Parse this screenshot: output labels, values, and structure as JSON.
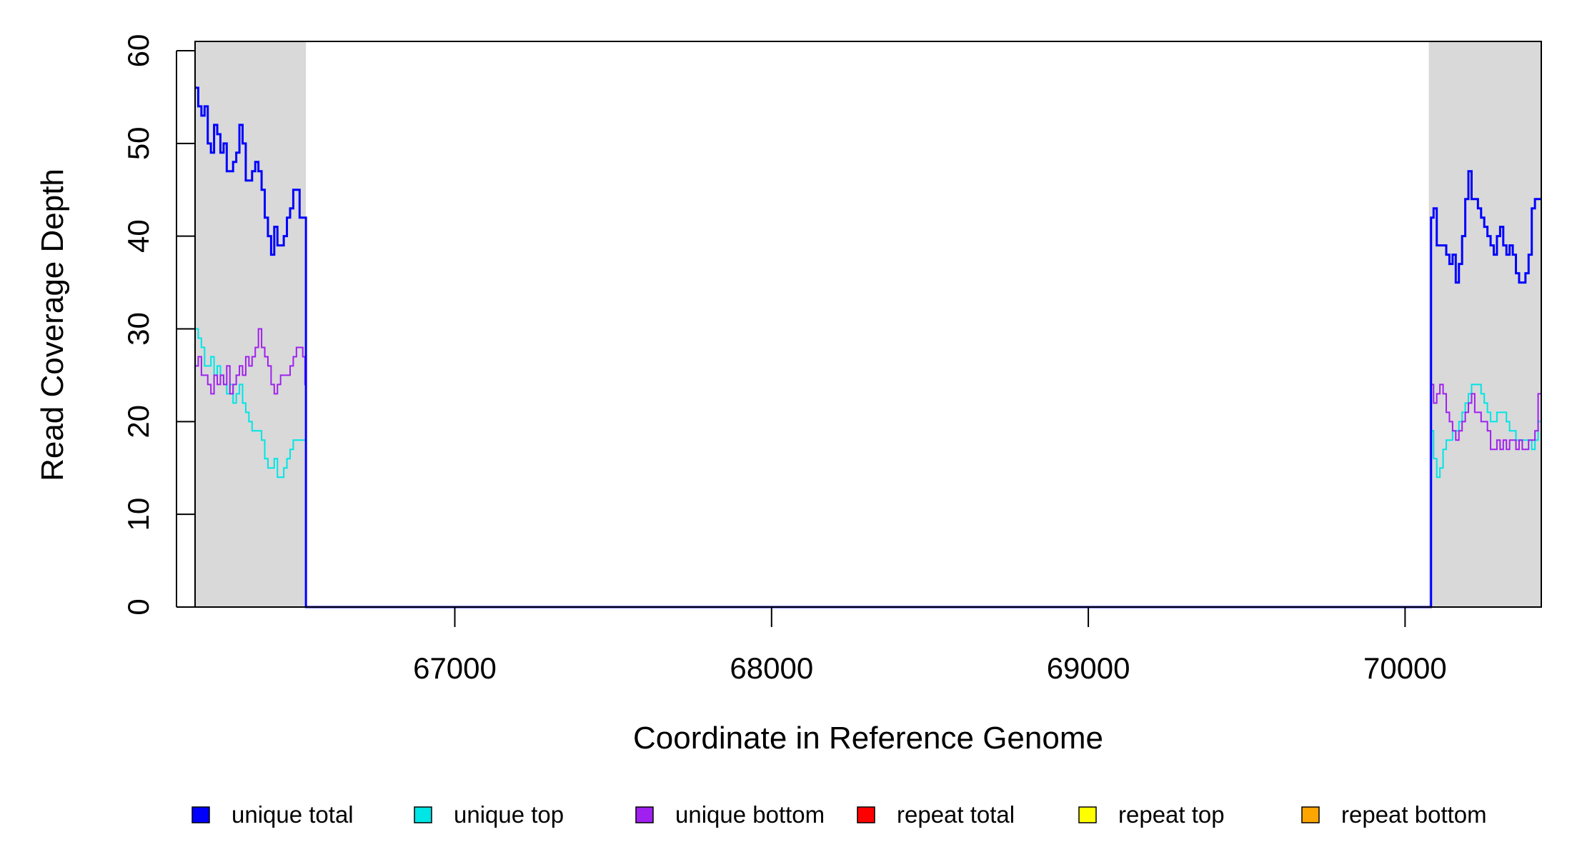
{
  "chart_data": {
    "type": "line",
    "title": "",
    "xlabel": "Coordinate in Reference Genome",
    "ylabel": "Read Coverage Depth",
    "xlim": [
      66180,
      70430
    ],
    "ylim": [
      0,
      61
    ],
    "x_ticks": [
      67000,
      68000,
      69000,
      70000
    ],
    "y_ticks": [
      0,
      10,
      20,
      30,
      40,
      50,
      60
    ],
    "grid": false,
    "legend_position": "bottom",
    "shaded_regions": [
      {
        "x0": 66180,
        "x1": 66530,
        "color": "#d9d9d9"
      },
      {
        "x0": 70075,
        "x1": 70430,
        "color": "#d9d9d9"
      }
    ],
    "series": [
      {
        "name": "unique total",
        "color": "#0000ff",
        "step": true,
        "x": [
          66180,
          66190,
          66200,
          66210,
          66220,
          66230,
          66240,
          66250,
          66260,
          66270,
          66280,
          66290,
          66300,
          66310,
          66320,
          66330,
          66340,
          66350,
          66360,
          66370,
          66380,
          66390,
          66400,
          66410,
          66420,
          66430,
          66440,
          66450,
          66460,
          66470,
          66480,
          66490,
          66500,
          66510,
          66520,
          66527,
          66530,
          70075,
          70082,
          70090,
          70100,
          70110,
          70120,
          70130,
          70140,
          70150,
          70160,
          70170,
          70180,
          70190,
          70200,
          70210,
          70220,
          70230,
          70240,
          70250,
          70260,
          70270,
          70280,
          70290,
          70300,
          70310,
          70320,
          70330,
          70340,
          70350,
          70360,
          70370,
          70380,
          70390,
          70400,
          70410,
          70420,
          70430
        ],
        "y": [
          56,
          54,
          53,
          54,
          50,
          49,
          52,
          51,
          49,
          50,
          47,
          47,
          48,
          49,
          52,
          50,
          46,
          46,
          47,
          48,
          47,
          45,
          42,
          40,
          38,
          41,
          39,
          39,
          40,
          42,
          43,
          45,
          45,
          42,
          42,
          42,
          0,
          0,
          42,
          43,
          39,
          39,
          39,
          38,
          37,
          38,
          35,
          37,
          40,
          44,
          47,
          44,
          44,
          43,
          42,
          41,
          40,
          39,
          38,
          40,
          41,
          39,
          38,
          39,
          38,
          36,
          35,
          35,
          36,
          38,
          43,
          44,
          44,
          44
        ],
        "note_width": 3
      },
      {
        "name": "unique top",
        "color": "#00e5e5",
        "step": true,
        "x": [
          66180,
          66190,
          66200,
          66210,
          66220,
          66230,
          66240,
          66250,
          66260,
          66270,
          66280,
          66290,
          66300,
          66310,
          66320,
          66330,
          66340,
          66350,
          66360,
          66370,
          66380,
          66390,
          66400,
          66410,
          66420,
          66430,
          66440,
          66450,
          66460,
          66470,
          66480,
          66490,
          66500,
          66510,
          66520,
          66527,
          66530,
          70075,
          70082,
          70090,
          70100,
          70110,
          70120,
          70130,
          70140,
          70150,
          70160,
          70170,
          70180,
          70190,
          70200,
          70210,
          70220,
          70230,
          70240,
          70250,
          70260,
          70270,
          70280,
          70290,
          70300,
          70310,
          70320,
          70330,
          70340,
          70350,
          70360,
          70370,
          70380,
          70390,
          70400,
          70410,
          70420,
          70430
        ],
        "y": [
          30,
          29,
          28,
          26,
          26,
          27,
          25,
          26,
          25,
          24,
          23,
          24,
          22,
          23,
          24,
          22,
          21,
          20,
          19,
          19,
          19,
          18,
          16,
          15,
          15,
          16,
          14,
          14,
          15,
          16,
          17,
          18,
          18,
          18,
          18,
          18,
          0,
          0,
          19,
          16,
          14,
          15,
          17,
          18,
          18,
          19,
          19,
          20,
          21,
          22,
          23,
          24,
          24,
          24,
          23,
          22,
          21,
          20,
          20,
          21,
          21,
          21,
          20,
          19,
          19,
          18,
          18,
          18,
          18,
          18,
          17,
          18,
          20,
          21
        ],
        "note_width": 2
      },
      {
        "name": "unique bottom",
        "color": "#a020f0",
        "step": true,
        "x": [
          66180,
          66190,
          66200,
          66210,
          66220,
          66230,
          66240,
          66250,
          66260,
          66270,
          66280,
          66290,
          66300,
          66310,
          66320,
          66330,
          66340,
          66350,
          66360,
          66370,
          66380,
          66390,
          66400,
          66410,
          66420,
          66430,
          66440,
          66450,
          66460,
          66470,
          66480,
          66490,
          66500,
          66510,
          66520,
          66527,
          66530,
          70075,
          70082,
          70090,
          70100,
          70110,
          70120,
          70130,
          70140,
          70150,
          70160,
          70170,
          70180,
          70190,
          70200,
          70210,
          70220,
          70230,
          70240,
          70250,
          70260,
          70270,
          70280,
          70290,
          70300,
          70310,
          70320,
          70330,
          70340,
          70350,
          70360,
          70370,
          70380,
          70390,
          70400,
          70410,
          70420,
          70430
        ],
        "y": [
          26,
          27,
          25,
          25,
          24,
          23,
          25,
          24,
          25,
          24,
          26,
          23,
          24,
          25,
          26,
          25,
          27,
          26,
          27,
          28,
          30,
          28,
          27,
          26,
          24,
          23,
          24,
          25,
          25,
          25,
          26,
          27,
          28,
          28,
          27,
          24,
          0,
          0,
          24,
          22,
          23,
          24,
          23,
          21,
          20,
          19,
          18,
          19,
          20,
          21,
          22,
          23,
          21,
          21,
          20,
          20,
          19,
          17,
          17,
          18,
          17,
          18,
          17,
          18,
          18,
          17,
          18,
          17,
          17,
          18,
          18,
          19,
          23,
          23
        ],
        "note_width": 2
      },
      {
        "name": "repeat total",
        "color": "#ff0000",
        "step": true,
        "x": [
          66180,
          70430
        ],
        "y": [
          0,
          0
        ],
        "note_width": 2
      },
      {
        "name": "repeat top",
        "color": "#ffff00",
        "step": true,
        "x": [
          66180,
          70430
        ],
        "y": [
          0,
          0
        ],
        "note_width": 2
      },
      {
        "name": "repeat bottom",
        "color": "#ffa500",
        "step": true,
        "x": [
          66180,
          70430
        ],
        "y": [
          0,
          0
        ],
        "note_width": 2
      }
    ]
  }
}
